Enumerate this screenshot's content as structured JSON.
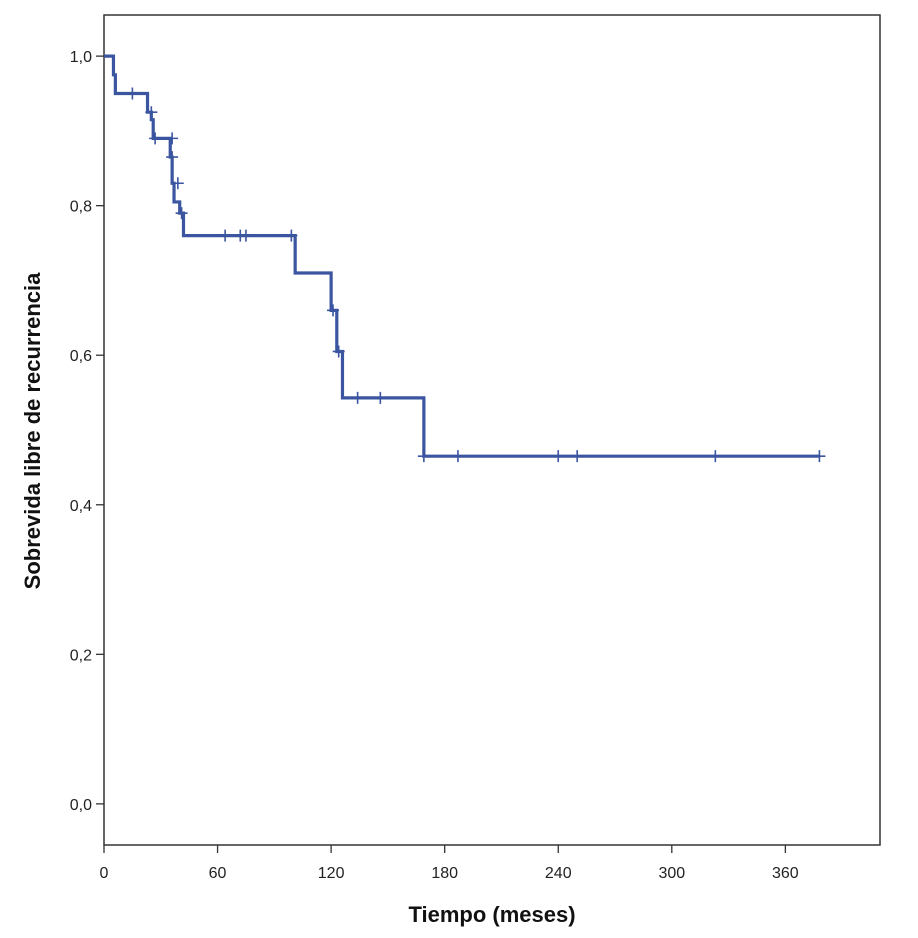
{
  "chart_data": {
    "type": "line",
    "title": "",
    "xlabel": "Tiempo (meses)",
    "ylabel": "Sobrevida libre de recurrencia",
    "xlim": [
      0,
      410
    ],
    "ylim": [
      -0.055,
      1.055
    ],
    "xticks": [
      0,
      60,
      120,
      180,
      240,
      300,
      360
    ],
    "xtick_labels": [
      "0",
      "60",
      "120",
      "180",
      "240",
      "300",
      "360"
    ],
    "yticks": [
      0.0,
      0.2,
      0.4,
      0.6,
      0.8,
      1.0
    ],
    "ytick_labels": [
      "0,0",
      "0,2",
      "0,4",
      "0,6",
      "0,8",
      "1,0"
    ],
    "grid": false,
    "legend": "none",
    "colors": {
      "series": "#3b55a0",
      "axis": "#333333"
    },
    "series": [
      {
        "step_x": [
          0,
          5,
          5,
          6,
          6,
          23,
          23,
          25,
          25,
          26,
          26,
          35,
          35,
          36,
          36,
          37,
          37,
          40,
          40,
          42,
          42,
          101,
          101,
          120,
          120,
          123,
          123,
          126,
          126,
          169,
          169,
          378
        ],
        "step_y": [
          1.0,
          1.0,
          0.975,
          0.975,
          0.95,
          0.95,
          0.925,
          0.925,
          0.915,
          0.915,
          0.89,
          0.89,
          0.865,
          0.865,
          0.83,
          0.83,
          0.805,
          0.805,
          0.79,
          0.79,
          0.76,
          0.76,
          0.71,
          0.71,
          0.66,
          0.66,
          0.605,
          0.605,
          0.543,
          0.543,
          0.465,
          0.465
        ],
        "censored": [
          {
            "x": 15,
            "y": 0.95
          },
          {
            "x": 25,
            "y": 0.925
          },
          {
            "x": 27,
            "y": 0.89
          },
          {
            "x": 36,
            "y": 0.89
          },
          {
            "x": 36,
            "y": 0.865
          },
          {
            "x": 39,
            "y": 0.83
          },
          {
            "x": 41,
            "y": 0.79
          },
          {
            "x": 64,
            "y": 0.76
          },
          {
            "x": 72,
            "y": 0.76
          },
          {
            "x": 75,
            "y": 0.76
          },
          {
            "x": 99,
            "y": 0.76
          },
          {
            "x": 121,
            "y": 0.66
          },
          {
            "x": 124,
            "y": 0.605
          },
          {
            "x": 134,
            "y": 0.543
          },
          {
            "x": 146,
            "y": 0.543
          },
          {
            "x": 169,
            "y": 0.465
          },
          {
            "x": 187,
            "y": 0.465
          },
          {
            "x": 240,
            "y": 0.465
          },
          {
            "x": 250,
            "y": 0.465
          },
          {
            "x": 323,
            "y": 0.465
          },
          {
            "x": 378,
            "y": 0.465
          }
        ]
      }
    ]
  }
}
